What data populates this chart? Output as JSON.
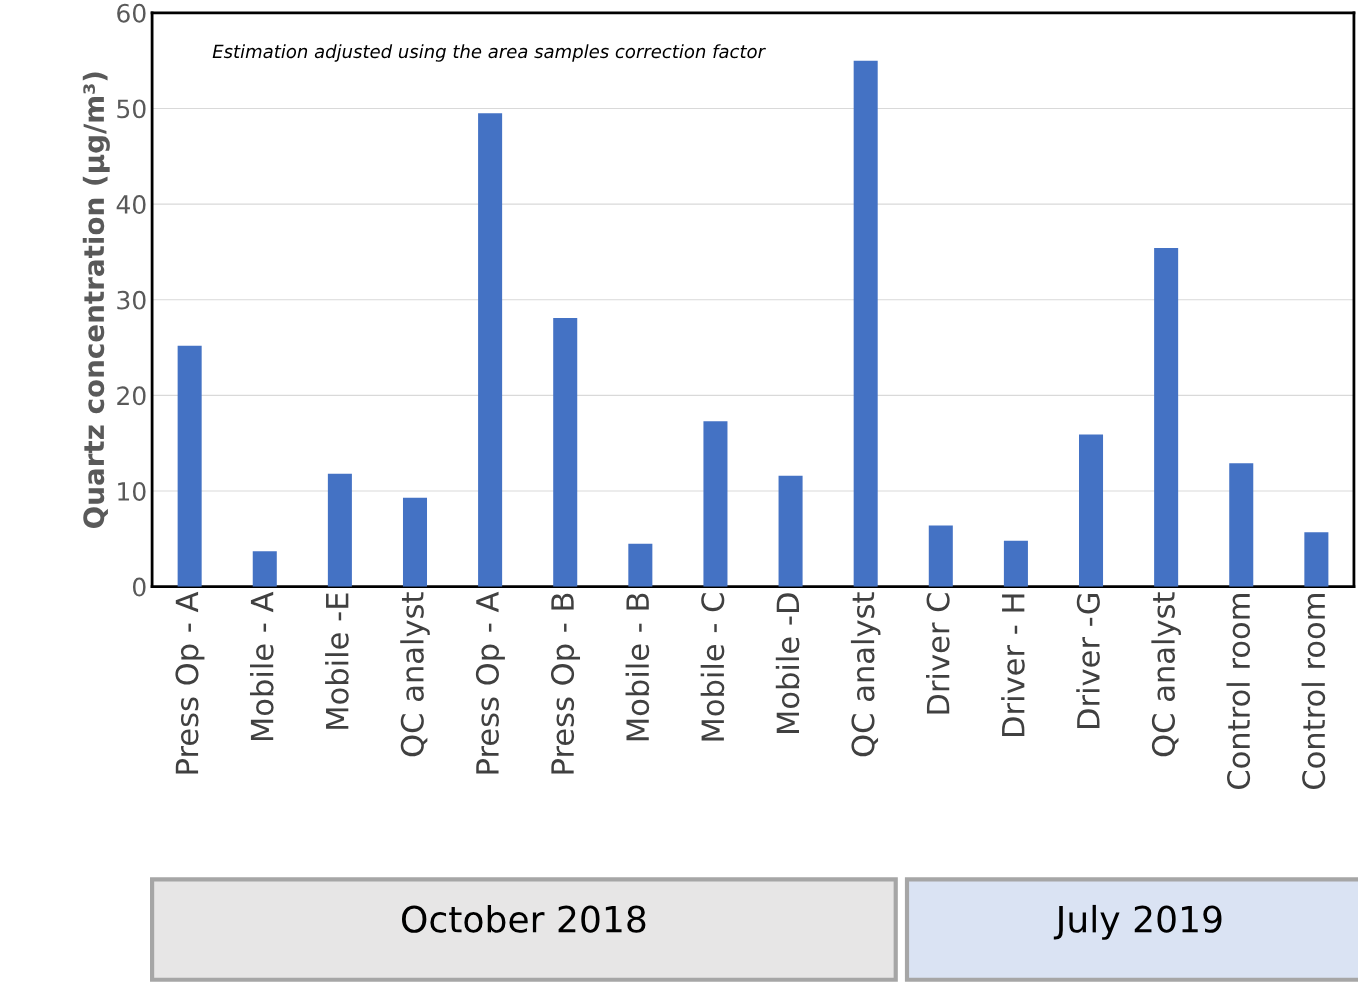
{
  "chart_data": {
    "type": "bar",
    "ylabel": "Quartz concentration (μg/m³)",
    "categories": [
      "Press Op - A",
      "Mobile - A",
      "Mobile -E",
      "QC analyst",
      "Press Op - A",
      "Press Op - B",
      "Mobile - B",
      "Mobile - C",
      "Mobile -D",
      "QC analyst",
      "Driver C",
      "Driver - H",
      "Driver -G",
      "QC analyst",
      "Control room",
      "Control room"
    ],
    "values": [
      25.2,
      3.7,
      11.8,
      9.3,
      49.5,
      28.1,
      4.5,
      17.3,
      11.6,
      55.0,
      6.4,
      4.8,
      15.9,
      35.4,
      12.9,
      5.7
    ],
    "color": "#4472c4",
    "ylim": [
      0,
      60
    ],
    "yticks": [
      0,
      10,
      20,
      30,
      40,
      50,
      60
    ],
    "grid": "y",
    "annotations": [
      "Estimation adjusted using the area samples correction factor",
      "October 2018",
      "July 2019"
    ]
  }
}
